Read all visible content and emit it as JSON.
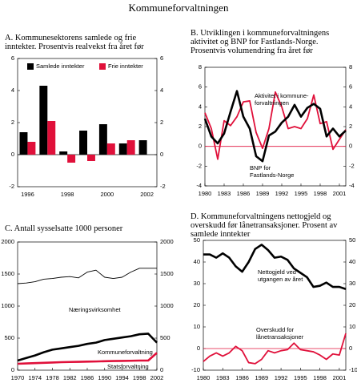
{
  "title": "Kommuneforvaltningen",
  "chart_data": [
    {
      "type": "bar",
      "title": "A. Kommunesektorens samlede og frie inntekter.  Prosentvis realvekst fra året før",
      "categories": [
        "1996",
        null,
        "1998",
        null,
        "2000",
        null,
        "2002"
      ],
      "series": [
        {
          "name": "Samlede inntekter",
          "color": "#000000",
          "values": [
            1.4,
            4.3,
            0.2,
            1.5,
            1.9,
            0.7,
            0.9
          ]
        },
        {
          "name": "Frie inntekter",
          "color": "#e0103a",
          "values": [
            0.8,
            2.1,
            -0.5,
            -0.4,
            0.7,
            0.9,
            0.0
          ]
        }
      ],
      "ylim": [
        -2,
        6
      ],
      "yticks": [
        -2,
        0,
        2,
        4,
        6
      ],
      "y2lim": [
        -2,
        6
      ],
      "y2ticks": [
        -2,
        0,
        2,
        4,
        6
      ],
      "legend": "top",
      "zero_line": "#000000"
    },
    {
      "type": "line",
      "title": "B. Utviklingen i kommuneforvaltningens aktivitet og BNP for Fastlands-Norge. Prosentvis volumendring fra året før",
      "x": [
        1980,
        1981,
        1982,
        1983,
        1984,
        1985,
        1986,
        1987,
        1988,
        1989,
        1990,
        1991,
        1992,
        1993,
        1994,
        1995,
        1996,
        1997,
        1998,
        1999,
        2000,
        2001,
        2002
      ],
      "series": [
        {
          "label_lines": [
            "Aktivitet i kommune-",
            "forvaltningen"
          ],
          "color": "#e0103a",
          "width": 1.8,
          "values": [
            3.4,
            1.8,
            -1.3,
            2.6,
            2.1,
            3.0,
            4.5,
            4.6,
            1.4,
            -0.2,
            1.8,
            5.5,
            4.0,
            1.8,
            2.0,
            1.8,
            2.8,
            5.2,
            2.3,
            2.5,
            -0.3,
            0.7,
            1.7
          ]
        },
        {
          "label_lines": [
            "BNP for",
            "Fastlands-Norge"
          ],
          "color": "#000000",
          "width": 2.6,
          "values": [
            2.8,
            1.0,
            0.3,
            1.3,
            3.5,
            5.6,
            3.0,
            1.8,
            -1.0,
            -1.5,
            1.1,
            1.5,
            2.4,
            3.0,
            4.2,
            3.0,
            3.9,
            4.3,
            3.8,
            1.0,
            1.8,
            1.0,
            1.6
          ]
        }
      ],
      "xlim": [
        1980,
        2002
      ],
      "xticks": [
        1980,
        1983,
        1986,
        1989,
        1992,
        1995,
        1998,
        2001
      ],
      "ylim": [
        -4,
        8
      ],
      "yticks": [
        -4,
        -2,
        0,
        2,
        4,
        6,
        8
      ],
      "y2lim": [
        -4,
        8
      ],
      "y2ticks": [
        -4,
        -2,
        0,
        2,
        4,
        6,
        8
      ],
      "zero_line": "#e0103a"
    },
    {
      "type": "line",
      "title": "C. Antall sysselsatte 1000 personer",
      "x": [
        1970,
        1972,
        1974,
        1976,
        1978,
        1980,
        1982,
        1984,
        1986,
        1988,
        1990,
        1992,
        1994,
        1996,
        1998,
        2000,
        2002
      ],
      "series": [
        {
          "label_lines": [
            "Næringsvirksomhet"
          ],
          "color": "#000000",
          "width": 0.9,
          "values": [
            1350,
            1360,
            1380,
            1420,
            1430,
            1450,
            1460,
            1440,
            1530,
            1560,
            1450,
            1430,
            1450,
            1530,
            1590,
            1590,
            1590
          ]
        },
        {
          "label_lines": [
            "Kommuneforvaltning"
          ],
          "color": "#000000",
          "width": 2.6,
          "values": [
            150,
            190,
            230,
            280,
            320,
            340,
            360,
            380,
            410,
            430,
            470,
            490,
            510,
            530,
            560,
            570,
            430
          ]
        },
        {
          "label_lines": [
            "Statsforvaltning"
          ],
          "color": "#e0103a",
          "width": 2.6,
          "values": [
            100,
            105,
            110,
            115,
            120,
            125,
            128,
            130,
            133,
            136,
            140,
            143,
            145,
            147,
            150,
            150,
            270
          ]
        }
      ],
      "xlim": [
        1970,
        2002
      ],
      "xticks": [
        1970,
        1974,
        1978,
        1982,
        1986,
        1990,
        1994,
        1998,
        2002
      ],
      "ylim": [
        0,
        2000
      ],
      "yticks": [
        0,
        500,
        1000,
        1500,
        2000
      ],
      "y2lim": [
        0,
        2000
      ],
      "y2ticks": [
        0,
        500,
        1000,
        1500,
        2000
      ]
    },
    {
      "type": "line",
      "title": "D. Kommuneforvaltningens nettogjeld og overskudd før lånetransaksjoner. Prosent av samlede inntekter",
      "x": [
        1980,
        1981,
        1982,
        1983,
        1984,
        1985,
        1986,
        1987,
        1988,
        1989,
        1990,
        1991,
        1992,
        1993,
        1994,
        1995,
        1996,
        1997,
        1998,
        1999,
        2000,
        2001,
        2002
      ],
      "series": [
        {
          "label_lines": [
            "Nettogjeld ved",
            "utgangen av året"
          ],
          "color": "#000000",
          "width": 2.6,
          "values": [
            43.5,
            43.5,
            42,
            44,
            42,
            38,
            35.5,
            40,
            46,
            48,
            45.5,
            42,
            42.5,
            41,
            37,
            35,
            33,
            28.5,
            29,
            30.5,
            28.5,
            28.5,
            27.5
          ]
        },
        {
          "label_lines": [
            "Overskudd for",
            "lånetransaksjoner"
          ],
          "color": "#e0103a",
          "width": 1.8,
          "values": [
            -6,
            -3.5,
            -2,
            -3.5,
            -2,
            1,
            -1,
            -6.5,
            -7,
            -5,
            -1,
            -2,
            -1,
            -0.5,
            2.5,
            -0.5,
            -1,
            -1.5,
            -3,
            -5,
            -2.5,
            -3,
            7
          ]
        }
      ],
      "xlim": [
        1980,
        2002
      ],
      "xticks": [
        1980,
        1983,
        1986,
        1989,
        1992,
        1995,
        1998,
        2001
      ],
      "ylim": [
        -10,
        50
      ],
      "yticks": [
        -10,
        0,
        10,
        20,
        30,
        40,
        50
      ],
      "y2lim": [
        -10,
        50
      ],
      "y2ticks": [
        -10,
        0,
        10,
        20,
        30,
        40,
        50
      ],
      "zero_line": "#e0103a"
    }
  ]
}
